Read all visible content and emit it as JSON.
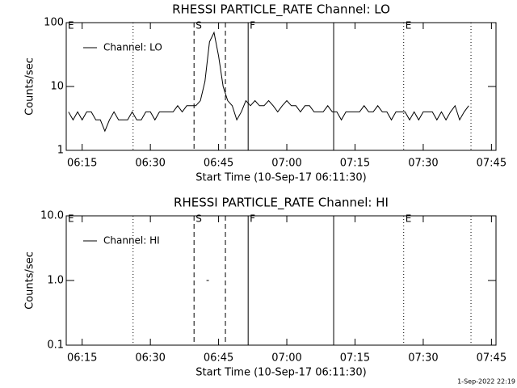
{
  "chart_data": [
    {
      "type": "line",
      "title": "RHESSI PARTICLE_RATE Channel: LO",
      "xlabel": "Start Time (10-Sep-17 06:11:30)",
      "ylabel": "Counts/sec",
      "log_y": true,
      "legend": "upper left",
      "xlim": [
        371.5,
        466
      ],
      "ylim": [
        1,
        100
      ],
      "xticks": [
        {
          "value": 375,
          "label": "06:15"
        },
        {
          "value": 390,
          "label": "06:30"
        },
        {
          "value": 405,
          "label": "06:45"
        },
        {
          "value": 420,
          "label": "07:00"
        },
        {
          "value": 435,
          "label": "07:15"
        },
        {
          "value": 450,
          "label": "07:30"
        },
        {
          "value": 465,
          "label": "07:45"
        }
      ],
      "yticks": [
        1,
        10,
        100
      ],
      "vlines": [
        {
          "x": 386.2,
          "style": "dotted"
        },
        {
          "x": 399.6,
          "style": "dashed"
        },
        {
          "x": 406.5,
          "style": "dashed"
        },
        {
          "x": 411.5,
          "style": "solid"
        },
        {
          "x": 430.3,
          "style": "solid"
        },
        {
          "x": 445.7,
          "style": "dotted"
        },
        {
          "x": 460.5,
          "style": "dotted"
        }
      ],
      "events": [
        {
          "label": "E",
          "x": 371.5
        },
        {
          "label": "S",
          "x": 399.6
        },
        {
          "label": "F",
          "x": 411.5
        },
        {
          "label": "E",
          "x": 445.7
        }
      ],
      "series": [
        {
          "name": "Channel: LO",
          "color": "#000000",
          "x": [
            372,
            373,
            374,
            375,
            376,
            377,
            378,
            379,
            380,
            381,
            382,
            383,
            384,
            385,
            386,
            387,
            388,
            389,
            390,
            391,
            392,
            393,
            394,
            395,
            396,
            397,
            398,
            399,
            400,
            401,
            402,
            403,
            404,
            405,
            406,
            407,
            408,
            409,
            410,
            411,
            412,
            413,
            414,
            415,
            416,
            417,
            418,
            419,
            420,
            421,
            422,
            423,
            424,
            425,
            426,
            427,
            428,
            429,
            430,
            431,
            432,
            433,
            434,
            435,
            436,
            437,
            438,
            439,
            440,
            441,
            442,
            443,
            444,
            445,
            446,
            447,
            448,
            449,
            450,
            451,
            452,
            453,
            454,
            455,
            456,
            457,
            458,
            459,
            460
          ],
          "values": [
            4,
            3,
            4,
            3,
            4,
            4,
            3,
            3,
            2,
            3,
            4,
            3,
            3,
            3,
            4,
            3,
            3,
            4,
            4,
            3,
            4,
            4,
            4,
            4,
            5,
            4,
            5,
            5,
            5,
            6,
            12,
            50,
            70,
            30,
            10,
            6,
            5,
            3,
            4,
            6,
            5,
            6,
            5,
            5,
            6,
            5,
            4,
            5,
            6,
            5,
            5,
            4,
            5,
            5,
            4,
            4,
            4,
            5,
            4,
            4,
            3,
            4,
            4,
            4,
            4,
            5,
            4,
            4,
            5,
            4,
            4,
            3,
            4,
            4,
            4,
            3,
            4,
            3,
            4,
            4,
            4,
            3,
            4,
            3,
            4,
            5,
            3,
            4,
            5
          ]
        }
      ]
    },
    {
      "type": "line",
      "title": "RHESSI PARTICLE_RATE Channel: HI",
      "xlabel": "Start Time (10-Sep-17 06:11:30)",
      "ylabel": "Counts/sec",
      "log_y": true,
      "legend": "upper left",
      "xlim": [
        371.5,
        466
      ],
      "ylim": [
        0.1,
        10
      ],
      "xticks": [
        {
          "value": 375,
          "label": "06:15"
        },
        {
          "value": 390,
          "label": "06:30"
        },
        {
          "value": 405,
          "label": "06:45"
        },
        {
          "value": 420,
          "label": "07:00"
        },
        {
          "value": 435,
          "label": "07:15"
        },
        {
          "value": 450,
          "label": "07:30"
        },
        {
          "value": 465,
          "label": "07:45"
        }
      ],
      "yticks": [
        0.1,
        {
          "value": 1,
          "label": "1.0"
        },
        {
          "value": 10,
          "label": "10.0"
        }
      ],
      "vlines": [
        {
          "x": 386.2,
          "style": "dotted"
        },
        {
          "x": 399.6,
          "style": "dashed"
        },
        {
          "x": 406.5,
          "style": "dashed"
        },
        {
          "x": 411.5,
          "style": "solid"
        },
        {
          "x": 430.3,
          "style": "solid"
        },
        {
          "x": 445.7,
          "style": "dotted"
        },
        {
          "x": 460.5,
          "style": "dotted"
        }
      ],
      "events": [
        {
          "label": "E",
          "x": 371.5
        },
        {
          "label": "S",
          "x": 399.6
        },
        {
          "label": "F",
          "x": 411.5
        },
        {
          "label": "E",
          "x": 445.7
        }
      ],
      "series": [
        {
          "name": "Channel: HI",
          "color": "#000000",
          "x": [
            402.6
          ],
          "values": [
            1
          ]
        }
      ]
    }
  ],
  "footer": "1-Sep-2022 22:19"
}
